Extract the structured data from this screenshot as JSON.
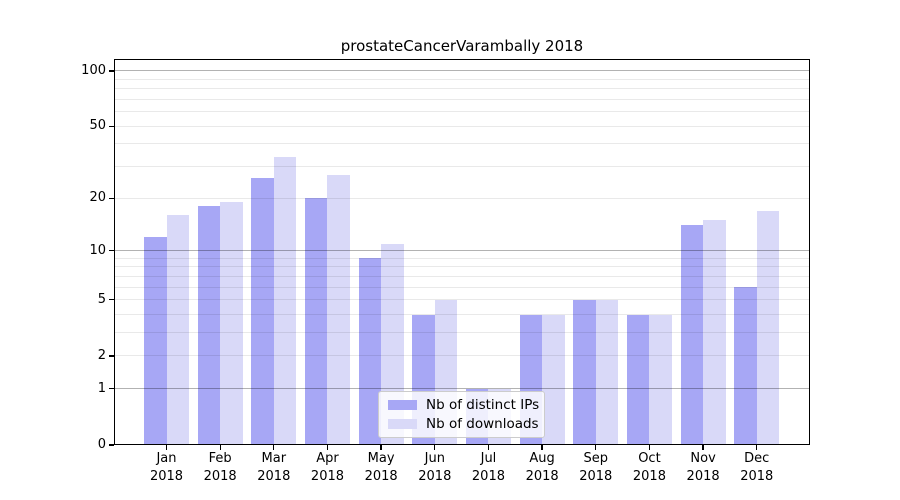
{
  "chart_data": {
    "type": "bar",
    "title": "prostateCancerVarambally 2018",
    "categories": [
      "Jan",
      "Feb",
      "Mar",
      "Apr",
      "May",
      "Jun",
      "Jul",
      "Aug",
      "Sep",
      "Oct",
      "Nov",
      "Dec"
    ],
    "category_year": "2018",
    "series": [
      {
        "name": "Nb of distinct IPs",
        "color": "#a7a7f5",
        "values": [
          12,
          18,
          26,
          20,
          9,
          4,
          1,
          4,
          5,
          4,
          14,
          6
        ]
      },
      {
        "name": "Nb of downloads",
        "color": "#d9d9f8",
        "values": [
          16,
          19,
          34,
          27,
          11,
          5,
          1,
          4,
          5,
          4,
          15,
          17
        ]
      }
    ],
    "yscale": "log1p",
    "ylim": [
      0,
      116
    ],
    "yticks": [
      0,
      1,
      2,
      5,
      10,
      20,
      50,
      100
    ],
    "grid_major": [
      1,
      10,
      100
    ],
    "grid_minor": [
      2,
      3,
      4,
      5,
      6,
      7,
      8,
      9,
      20,
      30,
      40,
      50,
      60,
      70,
      80,
      90
    ],
    "grid": true,
    "legend_position": "bottom-center",
    "colors": {
      "grid_major": "rgba(0,0,0,0.30)",
      "grid_minor": "rgba(0,0,0,0.085)",
      "axis": "#000000",
      "text": "#000000"
    }
  }
}
